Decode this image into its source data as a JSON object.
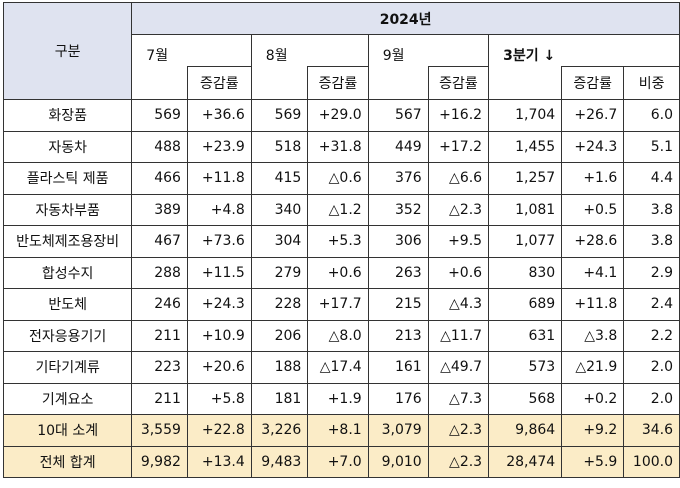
{
  "header": {
    "year": "2024년",
    "category_label": "구분",
    "months": [
      "7월",
      "8월",
      "9월",
      "3분기 ↓"
    ],
    "growth_label": "증감률",
    "share_label": "비중"
  },
  "rows": [
    {
      "name": "화장품",
      "m7": "569",
      "g7": "+36.6",
      "m8": "569",
      "g8": "+29.0",
      "m9": "567",
      "g9": "+16.2",
      "q3": "1,704",
      "gq": "+26.7",
      "share": "6.0"
    },
    {
      "name": "자동차",
      "m7": "488",
      "g7": "+23.9",
      "m8": "518",
      "g8": "+31.8",
      "m9": "449",
      "g9": "+17.2",
      "q3": "1,455",
      "gq": "+24.3",
      "share": "5.1"
    },
    {
      "name": "플라스틱 제품",
      "m7": "466",
      "g7": "+11.8",
      "m8": "415",
      "g8": "△0.6",
      "m9": "376",
      "g9": "△6.6",
      "q3": "1,257",
      "gq": "+1.6",
      "share": "4.4"
    },
    {
      "name": "자동차부품",
      "m7": "389",
      "g7": "+4.8",
      "m8": "340",
      "g8": "△1.2",
      "m9": "352",
      "g9": "△2.3",
      "q3": "1,081",
      "gq": "+0.5",
      "share": "3.8"
    },
    {
      "name": "반도체제조용장비",
      "m7": "467",
      "g7": "+73.6",
      "m8": "304",
      "g8": "+5.3",
      "m9": "306",
      "g9": "+9.5",
      "q3": "1,077",
      "gq": "+28.6",
      "share": "3.8"
    },
    {
      "name": "합성수지",
      "m7": "288",
      "g7": "+11.5",
      "m8": "279",
      "g8": "+0.6",
      "m9": "263",
      "g9": "+0.6",
      "q3": "830",
      "gq": "+4.1",
      "share": "2.9"
    },
    {
      "name": "반도체",
      "m7": "246",
      "g7": "+24.3",
      "m8": "228",
      "g8": "+17.7",
      "m9": "215",
      "g9": "△4.3",
      "q3": "689",
      "gq": "+11.8",
      "share": "2.4"
    },
    {
      "name": "전자응용기기",
      "m7": "211",
      "g7": "+10.9",
      "m8": "206",
      "g8": "△8.0",
      "m9": "213",
      "g9": "△11.7",
      "q3": "631",
      "gq": "△3.8",
      "share": "2.2"
    },
    {
      "name": "기타기계류",
      "m7": "223",
      "g7": "+20.6",
      "m8": "188",
      "g8": "△17.4",
      "m9": "161",
      "g9": "△49.7",
      "q3": "573",
      "gq": "△21.9",
      "share": "2.0"
    },
    {
      "name": "기계요소",
      "m7": "211",
      "g7": "+5.8",
      "m8": "181",
      "g8": "+1.9",
      "m9": "176",
      "g9": "△7.3",
      "q3": "568",
      "gq": "+0.2",
      "share": "2.0"
    }
  ],
  "subtotal": {
    "name": "10대 소계",
    "m7": "3,559",
    "g7": "+22.8",
    "m8": "3,226",
    "g8": "+8.1",
    "m9": "3,079",
    "g9": "△2.3",
    "q3": "9,864",
    "gq": "+9.2",
    "share": "34.6"
  },
  "total": {
    "name": "전체 합계",
    "m7": "9,982",
    "g7": "+13.4",
    "m8": "9,483",
    "g8": "+7.0",
    "m9": "9,010",
    "g9": "△2.3",
    "q3": "28,474",
    "gq": "+5.9",
    "share": "100.0"
  }
}
